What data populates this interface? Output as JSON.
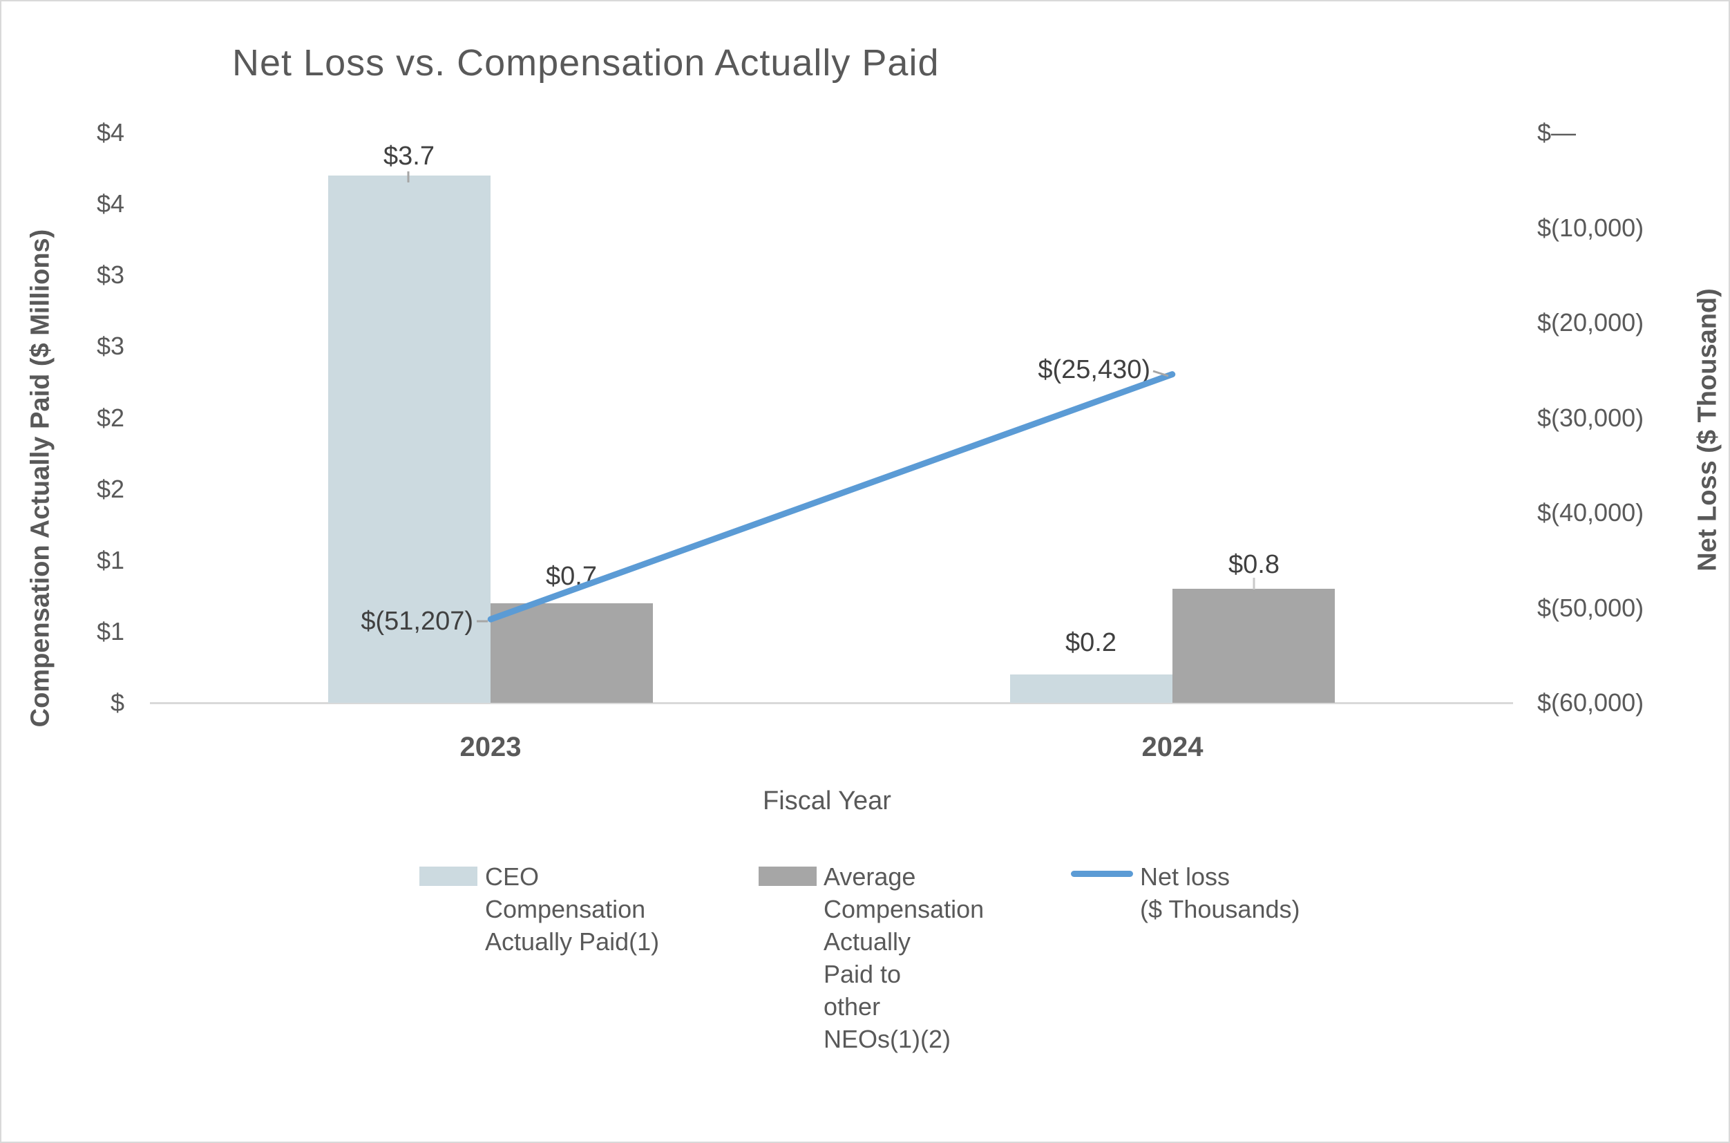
{
  "window": {
    "background": "#ffffff",
    "border_color": "#d9d9d9",
    "text_color": "#595959",
    "data_label_color": "#404040"
  },
  "chart_data": {
    "type": "bar",
    "subtype": "combo-bar-line-dual-axis",
    "title": "Net Loss vs. Compensation Actually Paid",
    "categories": [
      "2023",
      "2024"
    ],
    "x_axis": {
      "label": "Fiscal Year"
    },
    "left_axis": {
      "label": "Compensation Actually Paid ($ Millions)",
      "range": [
        0,
        4
      ],
      "tick_step_millions": 0.5,
      "ticks_top_to_bottom": [
        "$4",
        "$4",
        "$3",
        "$3",
        "$2",
        "$2",
        "$1",
        "$1",
        "$"
      ]
    },
    "right_axis": {
      "label": "Net Loss ($ Thousand)",
      "range": [
        0,
        -60000
      ],
      "tick_step_thousands": 10000,
      "ticks_top_to_bottom": [
        "$—",
        "$(10,000)",
        "$(20,000)",
        "$(30,000)",
        "$(40,000)",
        "$(50,000)",
        "$(60,000)"
      ]
    },
    "grid": "off",
    "legend_position": "bottom",
    "series": [
      {
        "key": "ceo-cap",
        "name": "CEO Compensation Actually Paid(1)",
        "type": "bar",
        "color": "#ccdae0",
        "axis": "left",
        "values_millions": [
          3.7,
          0.2
        ],
        "data_labels": [
          "$3.7",
          "$0.2"
        ]
      },
      {
        "key": "neo-cap",
        "name": "Average Compensation Actually Paid to other NEOs(1)(2)",
        "type": "bar",
        "color": "#a6a6a6",
        "axis": "left",
        "values_millions": [
          0.7,
          0.8
        ],
        "data_labels": [
          "$0.7",
          "$0.8"
        ]
      },
      {
        "key": "net-loss",
        "name": "Net loss ($ Thousands)",
        "type": "line",
        "color": "#5b9bd5",
        "axis": "right",
        "values_thousands": [
          -51207,
          -25430
        ],
        "data_labels": [
          "$(51,207)",
          "$(25,430)"
        ]
      }
    ],
    "legend": {
      "items": [
        {
          "swatch": "bar",
          "color": "#ccdae0",
          "lines": [
            "CEO",
            "Compensation",
            "Actually Paid(1)"
          ]
        },
        {
          "swatch": "bar",
          "color": "#a6a6a6",
          "lines": [
            "Average",
            "Compensation",
            "Actually",
            "Paid to",
            "other",
            "NEOs(1)(2)"
          ]
        },
        {
          "swatch": "line",
          "color": "#5b9bd5",
          "lines": [
            "Net loss",
            "($ Thousands)"
          ]
        }
      ]
    }
  }
}
